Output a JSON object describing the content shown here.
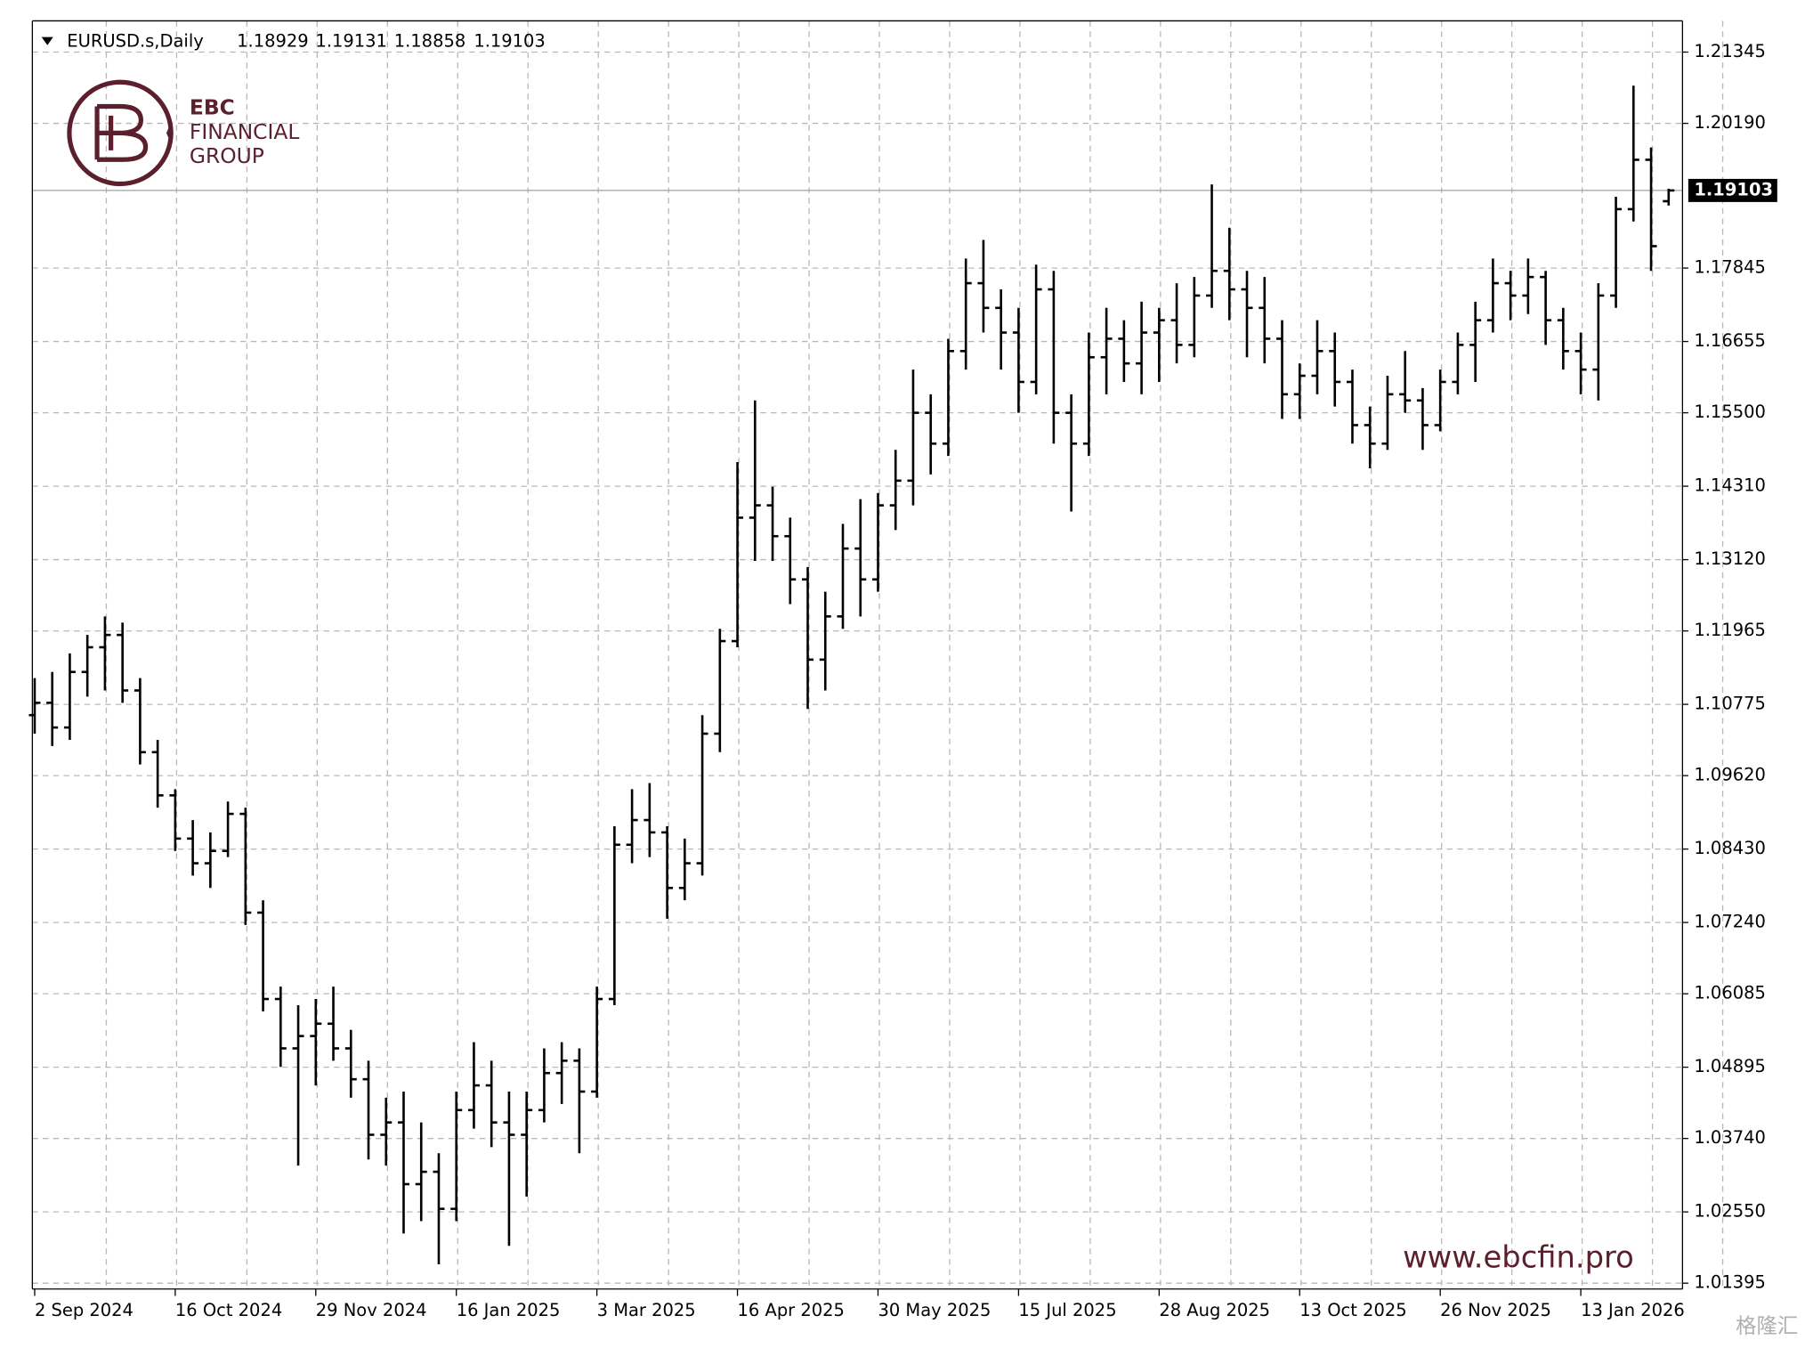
{
  "chart_data": {
    "type": "ohlc",
    "title": "EURUSD.s,Daily",
    "categories": [
      "2 Sep 2024",
      null,
      null,
      null,
      null,
      null,
      null,
      null,
      "16 Oct 2024",
      null,
      null,
      null,
      null,
      null,
      null,
      null,
      "29 Nov 2024",
      null,
      null,
      null,
      null,
      null,
      null,
      null,
      "16 Jan 2025",
      null,
      null,
      null,
      null,
      null,
      null,
      null,
      "3 Mar 2025",
      null,
      null,
      null,
      null,
      null,
      null,
      null,
      "16 Apr 2025",
      null,
      null,
      null,
      null,
      null,
      null,
      null,
      "30 May 2025",
      null,
      null,
      null,
      null,
      null,
      null,
      null,
      "15 Jul 2025",
      null,
      null,
      null,
      null,
      null,
      null,
      null,
      "28 Aug 2025",
      null,
      null,
      null,
      null,
      null,
      null,
      null,
      "13 Oct 2025",
      null,
      null,
      null,
      null,
      null,
      null,
      null,
      "26 Nov 2025",
      null,
      null,
      null,
      null,
      null,
      null,
      null,
      "13 Jan 2026",
      null,
      null,
      null,
      null,
      null
    ],
    "open": [
      1.106,
      1.108,
      1.104,
      1.113,
      1.117,
      1.119,
      1.11,
      1.1,
      1.093,
      1.086,
      1.082,
      1.084,
      1.09,
      1.074,
      1.06,
      1.052,
      1.054,
      1.056,
      1.052,
      1.047,
      1.038,
      1.04,
      1.03,
      1.032,
      1.026,
      1.042,
      1.046,
      1.04,
      1.038,
      1.042,
      1.048,
      1.05,
      1.045,
      1.06,
      1.085,
      1.089,
      1.087,
      1.078,
      1.082,
      1.103,
      1.118,
      1.138,
      1.14,
      1.135,
      1.128,
      1.115,
      1.122,
      1.133,
      1.128,
      1.14,
      1.144,
      1.155,
      1.15,
      1.165,
      1.176,
      1.172,
      1.168,
      1.16,
      1.175,
      1.155,
      1.15,
      1.164,
      1.167,
      1.163,
      1.168,
      1.17,
      1.166,
      1.174,
      1.178,
      1.175,
      1.172,
      1.167,
      1.158,
      1.161,
      1.165,
      1.16,
      1.153,
      1.15,
      1.158,
      1.157,
      1.153,
      1.16,
      1.166,
      1.17,
      1.176,
      1.174,
      1.177,
      1.17,
      1.165,
      1.162,
      1.174,
      1.188,
      1.196,
      1.18929
    ],
    "high": [
      1.112,
      1.113,
      1.116,
      1.119,
      1.122,
      1.121,
      1.112,
      1.102,
      1.094,
      1.089,
      1.087,
      1.092,
      1.091,
      1.076,
      1.062,
      1.059,
      1.06,
      1.062,
      1.055,
      1.05,
      1.044,
      1.045,
      1.04,
      1.035,
      1.045,
      1.053,
      1.05,
      1.045,
      1.045,
      1.052,
      1.053,
      1.052,
      1.062,
      1.088,
      1.094,
      1.095,
      1.088,
      1.086,
      1.106,
      1.12,
      1.147,
      1.157,
      1.143,
      1.138,
      1.13,
      1.126,
      1.137,
      1.141,
      1.142,
      1.149,
      1.162,
      1.158,
      1.167,
      1.18,
      1.183,
      1.175,
      1.172,
      1.179,
      1.178,
      1.158,
      1.168,
      1.172,
      1.17,
      1.173,
      1.172,
      1.176,
      1.177,
      1.192,
      1.185,
      1.178,
      1.177,
      1.17,
      1.163,
      1.17,
      1.168,
      1.162,
      1.156,
      1.161,
      1.165,
      1.159,
      1.162,
      1.168,
      1.173,
      1.18,
      1.178,
      1.18,
      1.178,
      1.172,
      1.168,
      1.176,
      1.19,
      1.208,
      1.198,
      1.19131
    ],
    "low": [
      1.103,
      1.101,
      1.102,
      1.109,
      1.11,
      1.108,
      1.098,
      1.091,
      1.084,
      1.08,
      1.078,
      1.083,
      1.072,
      1.058,
      1.049,
      1.033,
      1.046,
      1.05,
      1.044,
      1.034,
      1.033,
      1.022,
      1.024,
      1.017,
      1.024,
      1.039,
      1.036,
      1.02,
      1.028,
      1.04,
      1.043,
      1.035,
      1.044,
      1.059,
      1.082,
      1.083,
      1.073,
      1.076,
      1.08,
      1.1,
      1.117,
      1.131,
      1.131,
      1.124,
      1.107,
      1.11,
      1.12,
      1.122,
      1.126,
      1.136,
      1.14,
      1.145,
      1.148,
      1.162,
      1.168,
      1.162,
      1.155,
      1.158,
      1.15,
      1.139,
      1.148,
      1.158,
      1.16,
      1.158,
      1.16,
      1.163,
      1.164,
      1.172,
      1.17,
      1.164,
      1.163,
      1.154,
      1.154,
      1.158,
      1.156,
      1.15,
      1.146,
      1.149,
      1.155,
      1.149,
      1.152,
      1.158,
      1.16,
      1.168,
      1.17,
      1.171,
      1.166,
      1.162,
      1.158,
      1.157,
      1.172,
      1.186,
      1.178,
      1.18858
    ],
    "close": [
      1.108,
      1.104,
      1.113,
      1.117,
      1.119,
      1.11,
      1.1,
      1.093,
      1.086,
      1.082,
      1.084,
      1.09,
      1.074,
      1.06,
      1.052,
      1.054,
      1.056,
      1.052,
      1.047,
      1.038,
      1.04,
      1.03,
      1.032,
      1.026,
      1.042,
      1.046,
      1.04,
      1.038,
      1.042,
      1.048,
      1.05,
      1.045,
      1.06,
      1.085,
      1.089,
      1.087,
      1.078,
      1.082,
      1.103,
      1.118,
      1.138,
      1.14,
      1.135,
      1.128,
      1.115,
      1.122,
      1.133,
      1.128,
      1.14,
      1.144,
      1.155,
      1.15,
      1.165,
      1.176,
      1.172,
      1.168,
      1.16,
      1.175,
      1.155,
      1.15,
      1.164,
      1.167,
      1.163,
      1.168,
      1.17,
      1.166,
      1.174,
      1.178,
      1.175,
      1.172,
      1.167,
      1.158,
      1.161,
      1.165,
      1.16,
      1.153,
      1.15,
      1.158,
      1.157,
      1.153,
      1.16,
      1.166,
      1.17,
      1.176,
      1.174,
      1.177,
      1.17,
      1.165,
      1.162,
      1.174,
      1.188,
      1.196,
      1.182,
      1.19103
    ],
    "color": "#000000",
    "ylim": [
      1.01301,
      1.21851
    ],
    "yticks": [
      1.21345,
      {
        "value": 1.2019,
        "label": "1.20190"
      },
      1.17845,
      1.16655,
      {
        "value": 1.155,
        "label": "1.15500"
      },
      {
        "value": 1.1431,
        "label": "1.14310"
      },
      {
        "value": 1.1312,
        "label": "1.13120"
      },
      1.11965,
      1.10775,
      {
        "value": 1.0962,
        "label": "1.09620"
      },
      {
        "value": 1.0843,
        "label": "1.08430"
      },
      {
        "value": 1.0724,
        "label": "1.07240"
      },
      1.06085,
      1.04895,
      {
        "value": 1.0374,
        "label": "1.03740"
      },
      {
        "value": 1.0255,
        "label": "1.02550"
      },
      1.01395
    ],
    "grid": true
  },
  "logo": {
    "line1": "EBC",
    "line2": "FINANCIAL",
    "line3": "GROUP"
  },
  "watermark": "www.ebcfin.pro",
  "source_mark": "格隆汇"
}
